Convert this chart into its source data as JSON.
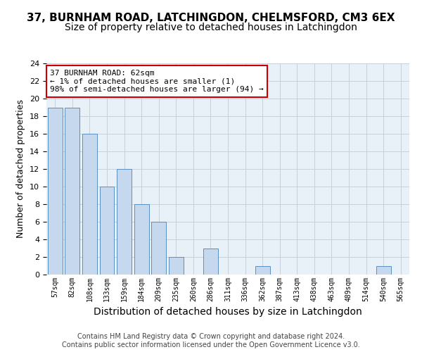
{
  "title": "37, BURNHAM ROAD, LATCHINGDON, CHELMSFORD, CM3 6EX",
  "subtitle": "Size of property relative to detached houses in Latchingdon",
  "xlabel": "Distribution of detached houses by size in Latchingdon",
  "ylabel": "Number of detached properties",
  "categories": [
    "57sqm",
    "82sqm",
    "108sqm",
    "133sqm",
    "159sqm",
    "184sqm",
    "209sqm",
    "235sqm",
    "260sqm",
    "286sqm",
    "311sqm",
    "336sqm",
    "362sqm",
    "387sqm",
    "413sqm",
    "438sqm",
    "463sqm",
    "489sqm",
    "514sqm",
    "540sqm",
    "565sqm"
  ],
  "values": [
    19,
    19,
    16,
    10,
    12,
    8,
    6,
    2,
    0,
    3,
    0,
    0,
    1,
    0,
    0,
    0,
    0,
    0,
    0,
    1,
    0
  ],
  "bar_color": "#c5d8ed",
  "bar_edge_color": "#5a8fc0",
  "annotation_line1": "37 BURNHAM ROAD: 62sqm",
  "annotation_line2": "← 1% of detached houses are smaller (1)",
  "annotation_line3": "98% of semi-detached houses are larger (94) →",
  "annotation_box_color": "#ffffff",
  "annotation_box_edge_color": "#cc0000",
  "ylim": [
    0,
    24
  ],
  "ytick_step": 2,
  "axes_facecolor": "#e8f0f8",
  "grid_color": "#c8d0dc",
  "footer_line1": "Contains HM Land Registry data © Crown copyright and database right 2024.",
  "footer_line2": "Contains public sector information licensed under the Open Government Licence v3.0.",
  "title_fontsize": 11,
  "subtitle_fontsize": 10,
  "xlabel_fontsize": 10,
  "ylabel_fontsize": 9,
  "annotation_fontsize": 8,
  "footer_fontsize": 7
}
